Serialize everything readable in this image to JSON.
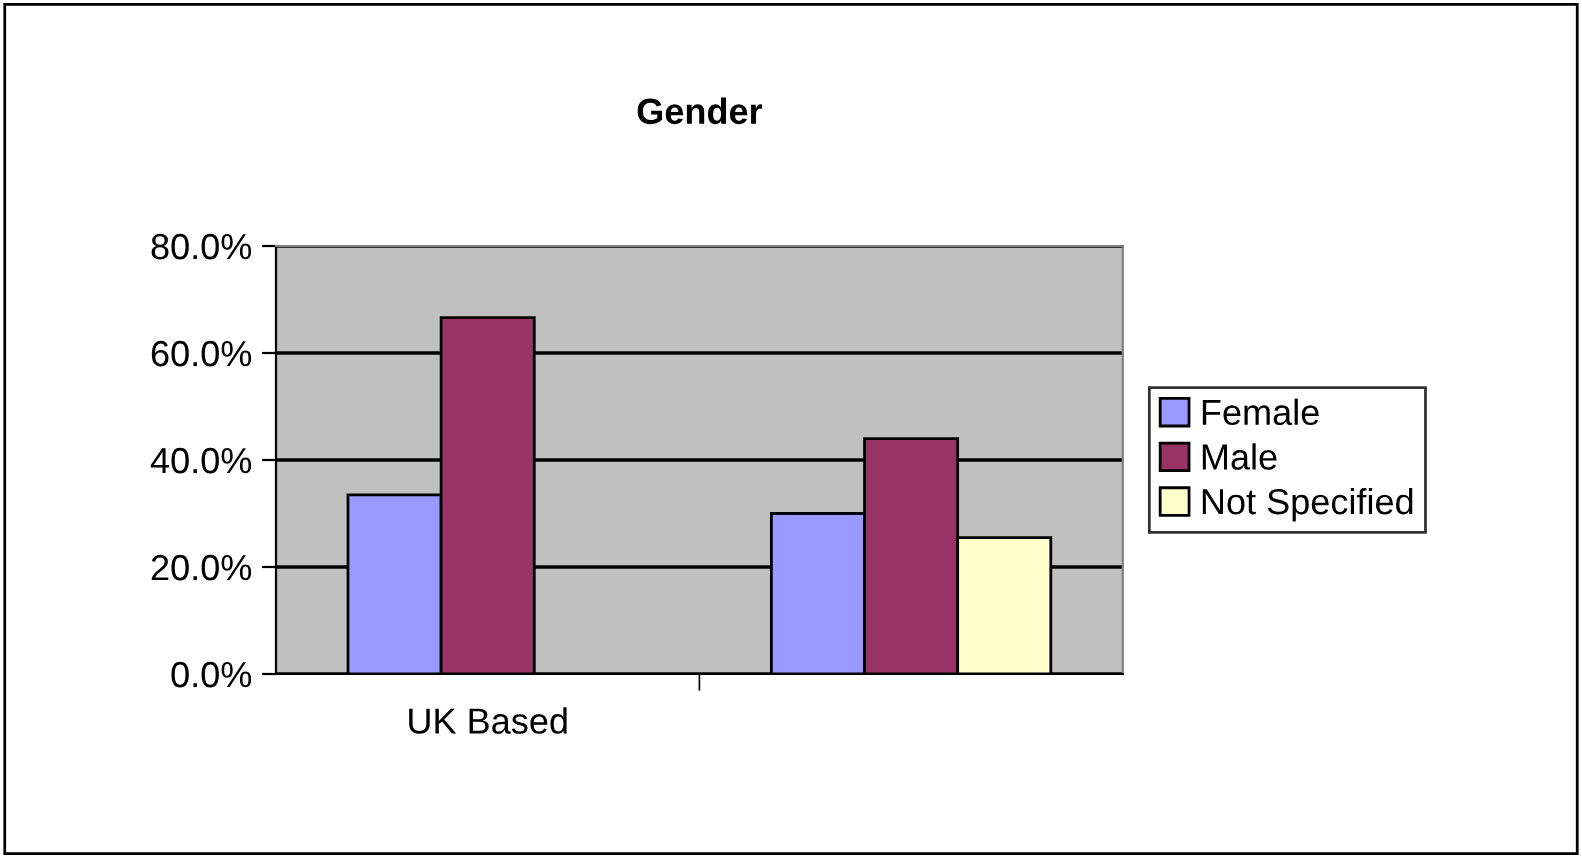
{
  "chart_data": {
    "type": "bar",
    "title": "Gender",
    "categories": [
      "UK Based",
      null
    ],
    "series": [
      {
        "name": "Female",
        "color": "#9999ff",
        "values": [
          0.335,
          0.3
        ]
      },
      {
        "name": "Male",
        "color": "#993366",
        "values": [
          0.666,
          0.44
        ]
      },
      {
        "name": "Not Specified",
        "color": "#ffffcc",
        "values": [
          null,
          0.255
        ]
      }
    ],
    "ylim": [
      0,
      0.8
    ],
    "yticks": [
      {
        "value": 0,
        "label": "0.0%"
      },
      {
        "value": 0.2,
        "label": "20.0%"
      },
      {
        "value": 0.4,
        "label": "40.0%"
      },
      {
        "value": 0.6,
        "label": "60.0%"
      },
      {
        "value": 0.8,
        "label": "80.0%"
      }
    ],
    "grid": "y",
    "legend": "right"
  }
}
